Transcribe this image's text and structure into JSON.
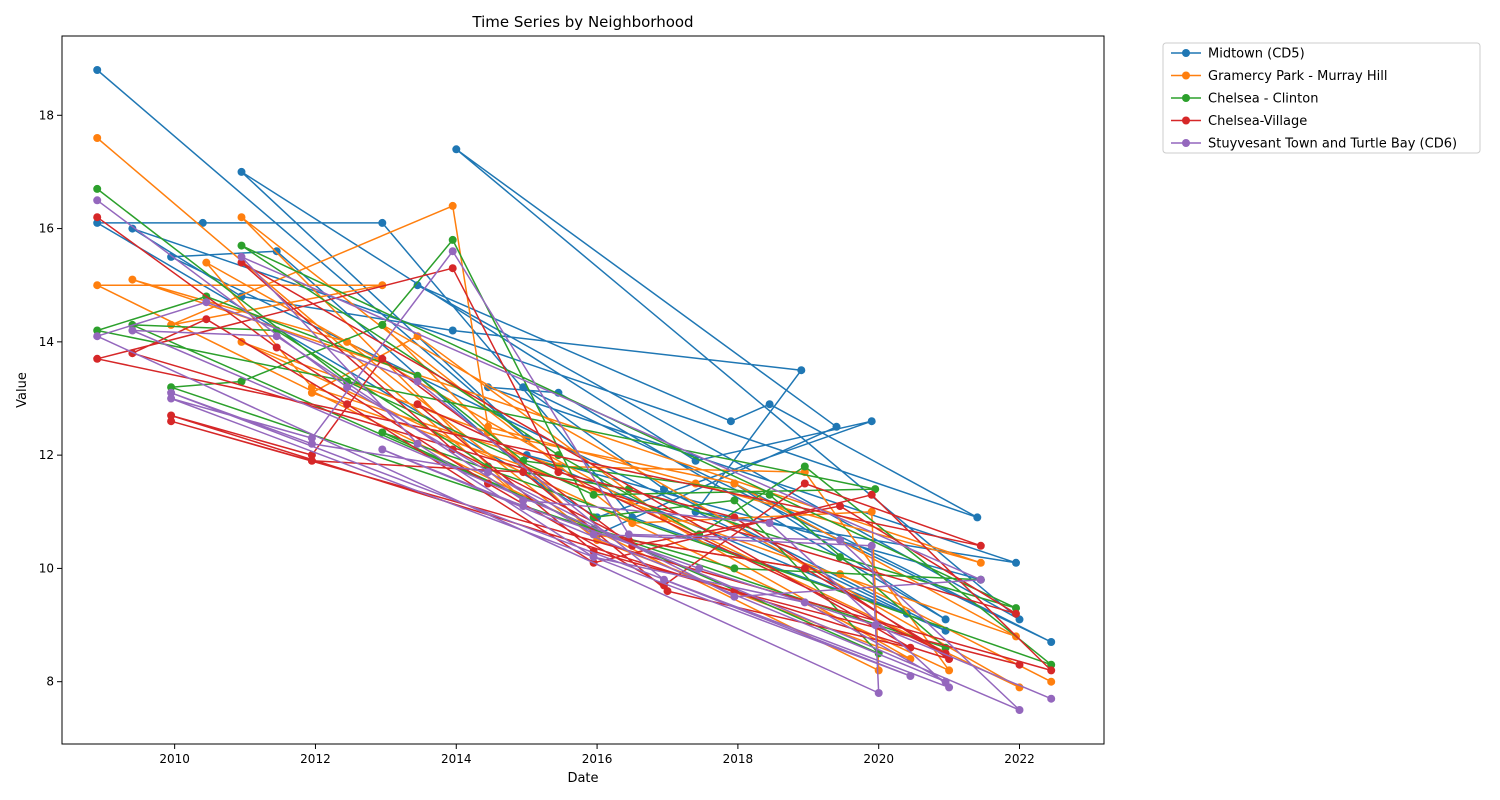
{
  "chart_data": {
    "type": "line",
    "title": "Time Series by Neighborhood",
    "xlabel": "Date",
    "ylabel": "Value",
    "xlim": [
      2008.4,
      2023.2
    ],
    "ylim": [
      6.9,
      19.4
    ],
    "x_ticks": [
      2010,
      2012,
      2014,
      2016,
      2018,
      2020,
      2022
    ],
    "y_ticks": [
      8,
      10,
      12,
      14,
      16,
      18
    ],
    "grid": false,
    "legend_placement": "outside-top-right",
    "series": [
      {
        "name": "Midtown (CD5)",
        "color": "#1f77b4",
        "points": [
          [
            2008.9,
            18.8
          ],
          [
            2015.0,
            12.3
          ],
          [
            2010.95,
            17.0
          ],
          [
            2017.4,
            11.9
          ],
          [
            2019.9,
            12.6
          ],
          [
            2016.0,
            10.9
          ],
          [
            2008.9,
            16.1
          ],
          [
            2010.4,
            16.1
          ],
          [
            2012.95,
            16.1
          ],
          [
            2016.5,
            10.9
          ],
          [
            2020.4,
            9.2
          ],
          [
            2009.95,
            15.5
          ],
          [
            2011.45,
            15.6
          ],
          [
            2016.0,
            10.6
          ],
          [
            2019.4,
            12.5
          ],
          [
            2014.0,
            17.4
          ],
          [
            2022.0,
            9.1
          ],
          [
            2013.45,
            15.0
          ],
          [
            2017.9,
            12.6
          ],
          [
            2018.45,
            12.9
          ],
          [
            2021.4,
            10.9
          ],
          [
            2009.4,
            16.0
          ],
          [
            2010.95,
            14.8
          ],
          [
            2013.95,
            14.2
          ],
          [
            2018.9,
            13.5
          ],
          [
            2017.4,
            11.0
          ],
          [
            2021.95,
            10.1
          ],
          [
            2014.45,
            13.2
          ],
          [
            2015.45,
            13.1
          ],
          [
            2020.95,
            9.1
          ],
          [
            2017.95,
            11.5
          ],
          [
            2022.45,
            8.7
          ],
          [
            2014.95,
            13.2
          ],
          [
            2016.95,
            11.4
          ],
          [
            2020.95,
            8.9
          ],
          [
            2015.0,
            12.0
          ],
          [
            2021.45,
            9.8
          ]
        ]
      },
      {
        "name": "Gramercy Park - Murray Hill",
        "color": "#ff7f0e",
        "points": [
          [
            2008.9,
            17.6
          ],
          [
            2014.95,
            11.2
          ],
          [
            2010.95,
            16.2
          ],
          [
            2016.5,
            10.8
          ],
          [
            2019.9,
            11.0
          ],
          [
            2020.0,
            8.2
          ],
          [
            2008.9,
            15.0
          ],
          [
            2012.95,
            15.0
          ],
          [
            2009.95,
            14.3
          ],
          [
            2013.95,
            16.4
          ],
          [
            2014.45,
            12.5
          ],
          [
            2017.4,
            11.5
          ],
          [
            2021.45,
            10.1
          ],
          [
            2009.4,
            15.1
          ],
          [
            2012.45,
            14.0
          ],
          [
            2016.0,
            10.5
          ],
          [
            2020.45,
            8.4
          ],
          [
            2010.45,
            15.4
          ],
          [
            2011.95,
            13.2
          ],
          [
            2015.45,
            11.8
          ],
          [
            2018.95,
            11.7
          ],
          [
            2021.0,
            8.2
          ],
          [
            2010.95,
            14.0
          ],
          [
            2014.45,
            12.4
          ],
          [
            2017.95,
            11.5
          ],
          [
            2021.95,
            8.8
          ],
          [
            2011.95,
            13.1
          ],
          [
            2013.45,
            14.1
          ],
          [
            2016.95,
            10.9
          ],
          [
            2022.0,
            7.9
          ],
          [
            2012.95,
            14.3
          ],
          [
            2015.95,
            10.6
          ],
          [
            2019.45,
            9.9
          ],
          [
            2022.45,
            8.0
          ]
        ]
      },
      {
        "name": "Chelsea - Clinton",
        "color": "#2ca02c",
        "points": [
          [
            2008.9,
            16.7
          ],
          [
            2012.45,
            13.3
          ],
          [
            2015.95,
            11.3
          ],
          [
            2019.95,
            11.4
          ],
          [
            2008.9,
            14.2
          ],
          [
            2010.45,
            14.8
          ],
          [
            2013.45,
            13.4
          ],
          [
            2014.95,
            11.9
          ],
          [
            2018.45,
            11.3
          ],
          [
            2020.95,
            8.6
          ],
          [
            2009.95,
            13.2
          ],
          [
            2010.95,
            13.3
          ],
          [
            2012.95,
            14.3
          ],
          [
            2013.95,
            15.8
          ],
          [
            2015.95,
            10.9
          ],
          [
            2017.95,
            11.2
          ],
          [
            2020.0,
            8.5
          ],
          [
            2009.4,
            14.3
          ],
          [
            2011.45,
            14.2
          ],
          [
            2014.45,
            11.8
          ],
          [
            2016.45,
            11.4
          ],
          [
            2019.45,
            10.2
          ],
          [
            2021.95,
            9.3
          ],
          [
            2010.95,
            15.7
          ],
          [
            2015.45,
            12.0
          ],
          [
            2017.45,
            10.6
          ],
          [
            2018.95,
            11.8
          ],
          [
            2022.45,
            8.3
          ],
          [
            2012.95,
            12.4
          ],
          [
            2015.95,
            10.7
          ],
          [
            2017.95,
            10.0
          ],
          [
            2021.45,
            9.8
          ]
        ]
      },
      {
        "name": "Chelsea-Village",
        "color": "#d62728",
        "points": [
          [
            2008.9,
            16.2
          ],
          [
            2011.45,
            13.9
          ],
          [
            2014.45,
            11.5
          ],
          [
            2016.95,
            9.7
          ],
          [
            2018.95,
            11.5
          ],
          [
            2021.45,
            10.4
          ],
          [
            2008.9,
            13.7
          ],
          [
            2013.95,
            15.3
          ],
          [
            2015.45,
            11.7
          ],
          [
            2017.95,
            10.9
          ],
          [
            2021.0,
            8.4
          ],
          [
            2009.95,
            12.7
          ],
          [
            2011.95,
            12.0
          ],
          [
            2012.95,
            13.7
          ],
          [
            2016.5,
            10.4
          ],
          [
            2019.45,
            11.1
          ],
          [
            2021.95,
            9.2
          ],
          [
            2009.4,
            13.8
          ],
          [
            2010.45,
            14.4
          ],
          [
            2012.45,
            12.9
          ],
          [
            2015.95,
            10.1
          ],
          [
            2019.9,
            11.3
          ],
          [
            2022.45,
            8.2
          ],
          [
            2009.95,
            12.6
          ],
          [
            2011.95,
            11.9
          ],
          [
            2014.95,
            11.7
          ],
          [
            2017.0,
            9.6
          ],
          [
            2020.45,
            8.6
          ],
          [
            2010.95,
            15.4
          ],
          [
            2013.95,
            12.1
          ],
          [
            2016.45,
            10.5
          ],
          [
            2018.95,
            10.0
          ],
          [
            2020.95,
            8.5
          ],
          [
            2013.45,
            12.9
          ],
          [
            2015.95,
            10.3
          ],
          [
            2017.95,
            9.6
          ],
          [
            2022.0,
            8.3
          ]
        ]
      },
      {
        "name": "Stuyvesant Town and Turtle Bay (CD6)",
        "color": "#9467bd",
        "points": [
          [
            2008.9,
            16.5
          ],
          [
            2012.45,
            13.2
          ],
          [
            2015.95,
            10.6
          ],
          [
            2019.9,
            10.4
          ],
          [
            2020.0,
            7.8
          ],
          [
            2008.9,
            14.1
          ],
          [
            2010.45,
            14.7
          ],
          [
            2013.45,
            13.3
          ],
          [
            2016.95,
            9.8
          ],
          [
            2020.45,
            8.1
          ],
          [
            2009.95,
            13.0
          ],
          [
            2011.95,
            12.3
          ],
          [
            2013.95,
            15.6
          ],
          [
            2016.45,
            10.6
          ],
          [
            2019.45,
            10.5
          ],
          [
            2022.0,
            7.5
          ],
          [
            2009.4,
            14.2
          ],
          [
            2011.45,
            14.1
          ],
          [
            2014.95,
            11.2
          ],
          [
            2018.45,
            10.8
          ],
          [
            2021.0,
            7.9
          ],
          [
            2009.95,
            13.1
          ],
          [
            2011.95,
            12.2
          ],
          [
            2014.45,
            11.7
          ],
          [
            2017.95,
            9.5
          ],
          [
            2021.45,
            9.8
          ],
          [
            2010.95,
            15.5
          ],
          [
            2013.45,
            12.2
          ],
          [
            2015.95,
            10.2
          ],
          [
            2018.95,
            9.4
          ],
          [
            2020.95,
            8.0
          ],
          [
            2012.95,
            12.1
          ],
          [
            2014.95,
            11.1
          ],
          [
            2017.45,
            10.0
          ],
          [
            2019.95,
            9.0
          ],
          [
            2022.45,
            7.7
          ]
        ]
      }
    ]
  }
}
